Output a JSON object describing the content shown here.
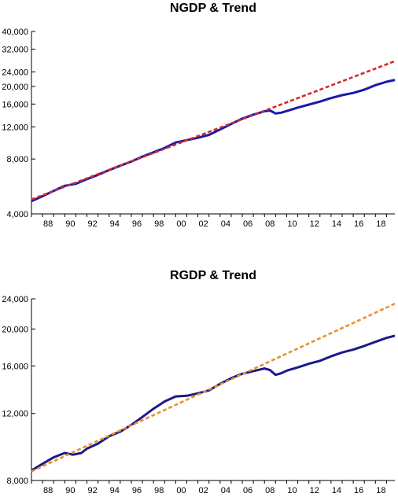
{
  "chart_data": [
    {
      "type": "line",
      "title": "NGDP & Trend",
      "scale": "log",
      "xlabel": "",
      "ylabel": "",
      "xlim": [
        1987.0,
        2019.75
      ],
      "ylim": [
        4000,
        40000
      ],
      "x_tick_labels": [
        "88",
        "90",
        "92",
        "94",
        "96",
        "98",
        "00",
        "02",
        "04",
        "06",
        "08",
        "10",
        "12",
        "14",
        "16",
        "18"
      ],
      "y_ticks": [
        4000,
        8000,
        12000,
        16000,
        20000,
        24000,
        32000,
        40000
      ],
      "y_tick_labels": [
        "4,000",
        "8,000",
        "12,000",
        "16,000",
        "20,000",
        "24,000",
        "32,000",
        "40,000"
      ],
      "grid": false,
      "series": [
        {
          "color": "#1a1aa8",
          "style": "solid",
          "x": [
            1987.0,
            1988,
            1989,
            1990,
            1991,
            1992,
            1993,
            1994,
            1995,
            1996,
            1997,
            1998,
            1999,
            2000,
            2001,
            2002,
            2003,
            2004,
            2005,
            2006,
            2007,
            2008,
            2008.5,
            2009,
            2009.5,
            2010,
            2011,
            2012,
            2013,
            2014,
            2015,
            2016,
            2017,
            2018,
            2019,
            2019.75
          ],
          "y": [
            4700,
            5000,
            5350,
            5700,
            5850,
            6200,
            6550,
            6950,
            7350,
            7750,
            8250,
            8700,
            9200,
            9850,
            10150,
            10450,
            10850,
            11600,
            12450,
            13300,
            14000,
            14600,
            14750,
            14200,
            14350,
            14650,
            15300,
            15900,
            16500,
            17250,
            17900,
            18400,
            19200,
            20300,
            21200,
            21700
          ]
        },
        {
          "color": "#d42a2a",
          "style": "dashed",
          "x": [
            1987.0,
            2019.75
          ],
          "y": [
            4800,
            27500
          ]
        }
      ]
    },
    {
      "type": "line",
      "title": "RGDP & Trend",
      "scale": "log",
      "xlabel": "",
      "ylabel": "",
      "xlim": [
        1987.0,
        2019.75
      ],
      "ylim": [
        8000,
        24000
      ],
      "x_tick_labels": [
        "88",
        "90",
        "92",
        "94",
        "96",
        "98",
        "00",
        "02",
        "04",
        "06",
        "08",
        "10",
        "12",
        "14",
        "16",
        "18"
      ],
      "y_ticks": [
        8000,
        12000,
        16000,
        20000,
        24000
      ],
      "y_tick_labels": [
        "8,000",
        "12,000",
        "16,000",
        "20,000",
        "24,000"
      ],
      "grid": false,
      "series": [
        {
          "color": "#1a1a8a",
          "style": "solid",
          "x": [
            1987.0,
            1988,
            1989,
            1990,
            1990.75,
            1991.5,
            1992,
            1993,
            1994,
            1995,
            1996,
            1997,
            1998,
            1999,
            2000,
            2001,
            2002,
            2003,
            2004,
            2005,
            2006,
            2007,
            2008,
            2008.5,
            2009,
            2009.5,
            2010,
            2011,
            2012,
            2013,
            2014,
            2015,
            2016,
            2017,
            2018,
            2019,
            2019.75
          ],
          "y": [
            8500,
            8850,
            9200,
            9450,
            9350,
            9450,
            9700,
            10000,
            10450,
            10750,
            11200,
            11750,
            12350,
            12900,
            13300,
            13350,
            13550,
            13800,
            14350,
            14850,
            15250,
            15500,
            15750,
            15600,
            15150,
            15300,
            15550,
            15850,
            16200,
            16500,
            16950,
            17350,
            17650,
            18050,
            18500,
            18950,
            19200
          ]
        },
        {
          "color": "#e8922a",
          "style": "dashed",
          "x": [
            1987.0,
            2019.75
          ],
          "y": [
            8450,
            23300
          ]
        }
      ]
    }
  ]
}
